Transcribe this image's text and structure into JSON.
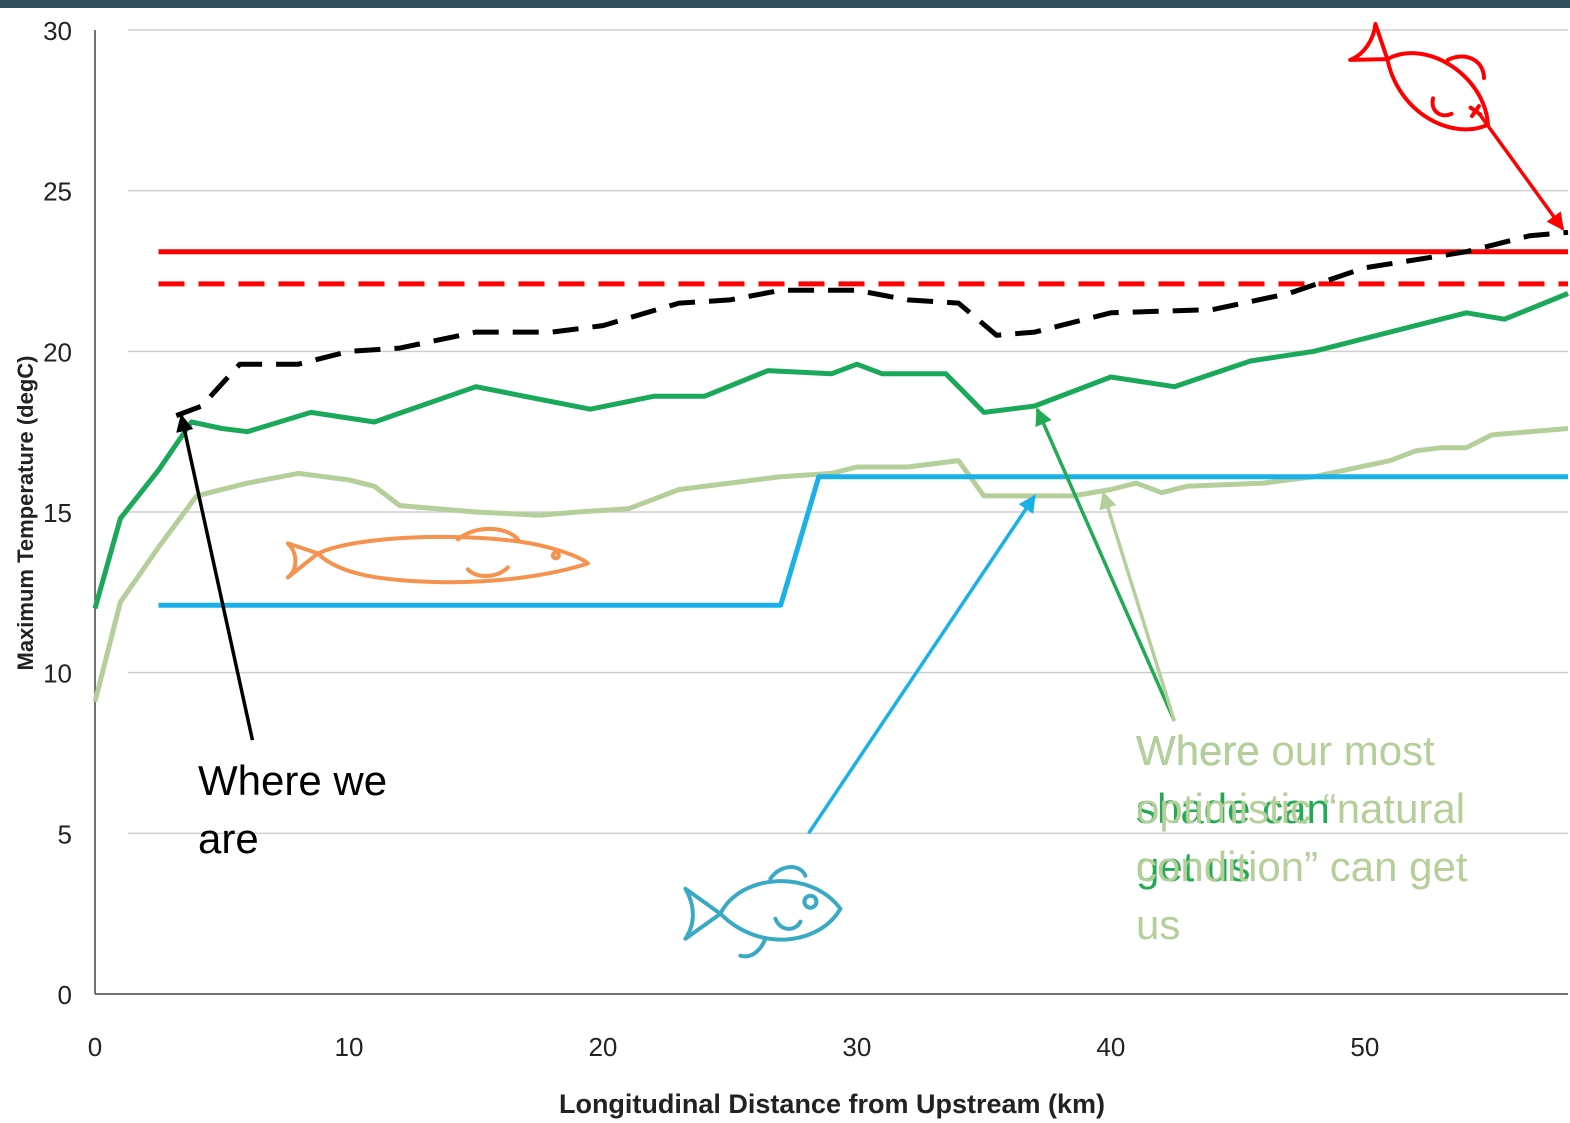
{
  "chart_data": {
    "type": "line",
    "title": "",
    "xlabel": "Longitudinal Distance from Upstream (km)",
    "ylabel": "Maximum Temperature (degC)",
    "xlim": [
      0,
      58
    ],
    "ylim": [
      0,
      30
    ],
    "x_ticks": [
      0,
      10,
      20,
      30,
      40,
      50
    ],
    "y_ticks": [
      0,
      5,
      10,
      15,
      20,
      25,
      30
    ],
    "grid": "horizontal",
    "legend": "none",
    "series": [
      {
        "color": "#ff0000",
        "style": "solid",
        "points": [
          [
            2.5,
            23.1
          ],
          [
            58,
            23.1
          ]
        ]
      },
      {
        "color": "#ff0000",
        "style": "dashed",
        "points": [
          [
            2.5,
            22.1
          ],
          [
            58,
            22.1
          ]
        ]
      },
      {
        "color": "#000000",
        "style": "dashed",
        "points": [
          [
            3.2,
            18.0
          ],
          [
            4.2,
            18.3
          ],
          [
            5.7,
            19.6
          ],
          [
            8,
            19.6
          ],
          [
            10,
            20.0
          ],
          [
            12,
            20.1
          ],
          [
            15,
            20.6
          ],
          [
            18,
            20.6
          ],
          [
            20,
            20.8
          ],
          [
            23,
            21.5
          ],
          [
            25,
            21.6
          ],
          [
            27,
            21.9
          ],
          [
            30,
            21.9
          ],
          [
            32,
            21.6
          ],
          [
            34,
            21.5
          ],
          [
            35.5,
            20.5
          ],
          [
            37,
            20.6
          ],
          [
            40,
            21.2
          ],
          [
            44,
            21.3
          ],
          [
            47,
            21.8
          ],
          [
            50,
            22.6
          ],
          [
            54,
            23.1
          ],
          [
            56.5,
            23.6
          ],
          [
            58,
            23.7
          ]
        ]
      },
      {
        "color": "#1aa85a",
        "style": "solid",
        "points": [
          [
            0,
            12.0
          ],
          [
            1,
            14.8
          ],
          [
            2.5,
            16.3
          ],
          [
            3.8,
            17.8
          ],
          [
            5,
            17.6
          ],
          [
            6,
            17.5
          ],
          [
            8.5,
            18.1
          ],
          [
            11,
            17.8
          ],
          [
            15,
            18.9
          ],
          [
            19.5,
            18.2
          ],
          [
            22,
            18.6
          ],
          [
            24,
            18.6
          ],
          [
            26.5,
            19.4
          ],
          [
            29,
            19.3
          ],
          [
            30,
            19.6
          ],
          [
            31,
            19.3
          ],
          [
            33.5,
            19.3
          ],
          [
            35,
            18.1
          ],
          [
            37,
            18.3
          ],
          [
            40,
            19.2
          ],
          [
            42.5,
            18.9
          ],
          [
            45.5,
            19.7
          ],
          [
            48,
            20.0
          ],
          [
            52,
            20.8
          ],
          [
            54,
            21.2
          ],
          [
            55.5,
            21.0
          ],
          [
            58,
            21.8
          ]
        ]
      },
      {
        "color": "#b5cf9a",
        "style": "solid",
        "points": [
          [
            0,
            9.1
          ],
          [
            1,
            12.2
          ],
          [
            2.5,
            13.9
          ],
          [
            4,
            15.5
          ],
          [
            6,
            15.9
          ],
          [
            8,
            16.2
          ],
          [
            10,
            16.0
          ],
          [
            11,
            15.8
          ],
          [
            12,
            15.2
          ],
          [
            15,
            15.0
          ],
          [
            17.5,
            14.9
          ],
          [
            19,
            15.0
          ],
          [
            21,
            15.1
          ],
          [
            23,
            15.7
          ],
          [
            25,
            15.9
          ],
          [
            27,
            16.1
          ],
          [
            29,
            16.2
          ],
          [
            30,
            16.4
          ],
          [
            32,
            16.4
          ],
          [
            34,
            16.6
          ],
          [
            35,
            15.5
          ],
          [
            37,
            15.5
          ],
          [
            38.5,
            15.5
          ],
          [
            40,
            15.7
          ],
          [
            41,
            15.9
          ],
          [
            42,
            15.6
          ],
          [
            43,
            15.8
          ],
          [
            46,
            15.9
          ],
          [
            48,
            16.1
          ],
          [
            51,
            16.6
          ],
          [
            52,
            16.9
          ],
          [
            53,
            17.0
          ],
          [
            54,
            17.0
          ],
          [
            55,
            17.4
          ],
          [
            58,
            17.6
          ]
        ]
      },
      {
        "color": "#1ab0e8",
        "style": "solid",
        "points": [
          [
            2.5,
            12.1
          ],
          [
            27,
            12.1
          ],
          [
            28.5,
            16.1
          ],
          [
            58,
            16.1
          ]
        ]
      }
    ],
    "annotations": [
      {
        "lines": [
          "Where we",
          "are"
        ],
        "color": "#000000",
        "arrow_from": [
          6.2,
          7.9
        ],
        "arrow_to": [
          3.4,
          18.0
        ]
      },
      {
        "lines": [
          "Where",
          "shade can",
          "get us"
        ],
        "color": "#22aa55",
        "arrow_from": [
          42.5,
          8.5
        ],
        "arrow_to": [
          37.1,
          18.2
        ]
      },
      {
        "lines": [
          "Where our most",
          "optimistic “natural",
          "condition” can get",
          "us"
        ],
        "color": "#b5cf9a",
        "arrow_from": [
          42.5,
          8.5
        ],
        "arrow_to": [
          39.7,
          15.6
        ]
      },
      {
        "lines": [],
        "color": "#1ab0e8",
        "arrow_from": [
          28.1,
          5.0
        ],
        "arrow_to": [
          37.0,
          15.5
        ]
      },
      {
        "lines": [],
        "color": "#ff0000",
        "arrow_from": [
          54.5,
          27.4
        ],
        "arrow_to": [
          57.8,
          23.8
        ]
      }
    ],
    "fish_icons": [
      {
        "name": "red-fish-icon",
        "color": "#ff0000",
        "at": [
          52.5,
          28.2
        ]
      },
      {
        "name": "orange-fish-icon",
        "color": "#f5924d",
        "at": [
          13.5,
          13.4
        ]
      },
      {
        "name": "teal-fish-icon",
        "color": "#3aaac4",
        "at": [
          26.2,
          2.5
        ]
      }
    ]
  }
}
